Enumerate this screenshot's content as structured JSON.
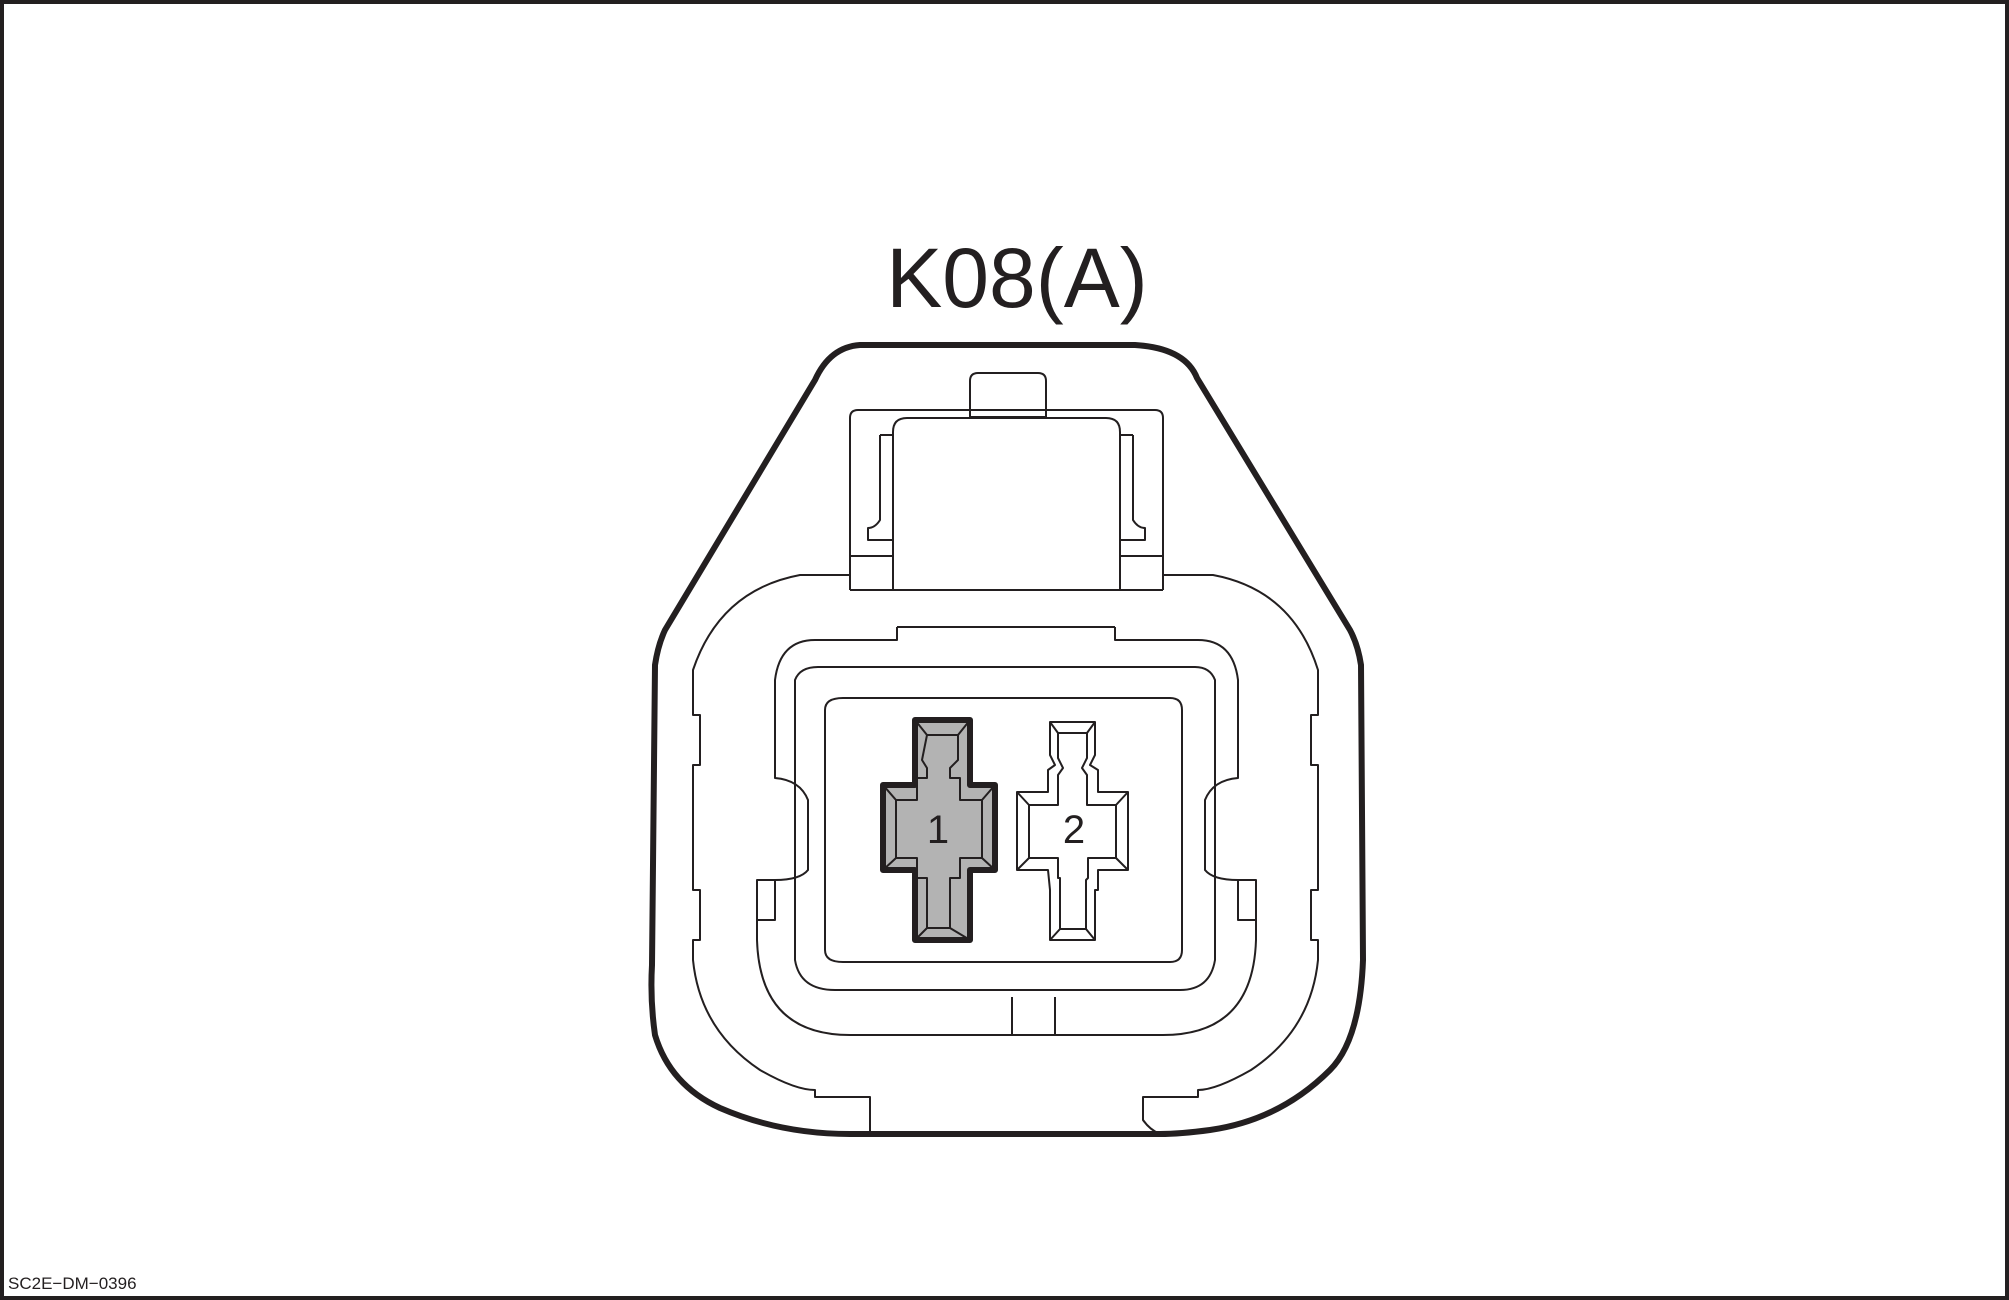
{
  "connector": {
    "title": "K08(A)",
    "pins": [
      {
        "number": "1",
        "state": "used",
        "fill": "#b3b3b3"
      },
      {
        "number": "2",
        "state": "unused",
        "fill": "#ffffff"
      }
    ]
  },
  "reference_code": "SC2E−DM−0396",
  "colors": {
    "line": "#231f20",
    "used_pin": "#b3b3b3",
    "background": "#ffffff"
  }
}
